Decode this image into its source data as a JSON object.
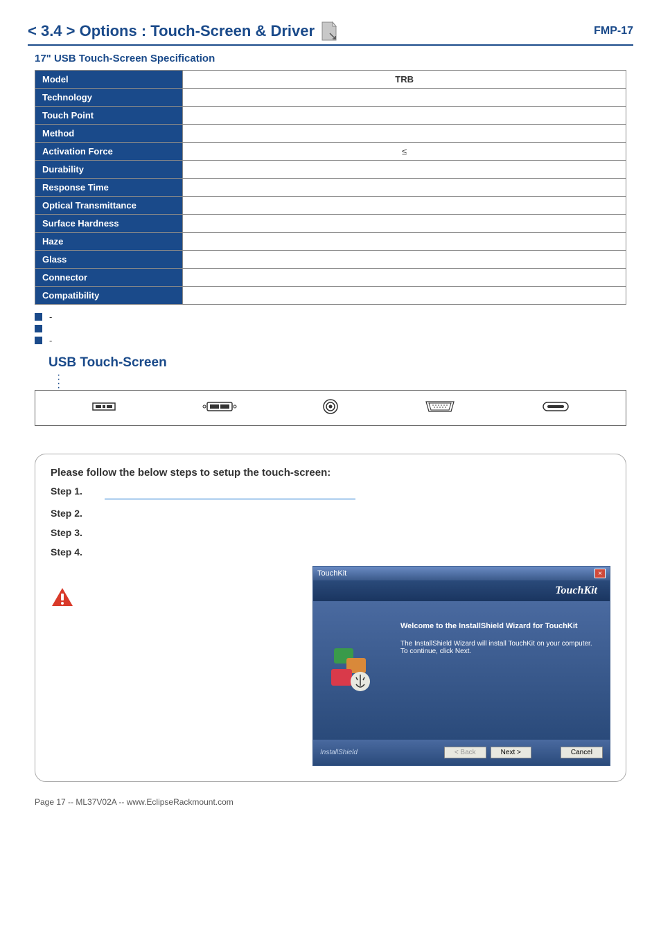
{
  "header": {
    "title": "< 3.4 > Options : Touch-Screen & Driver",
    "product": "FMP-17"
  },
  "subsection_title": "17\" USB Touch-Screen Specification",
  "spec": {
    "header_label": "Model",
    "header_value": "TRB",
    "rows": [
      {
        "label": "Technology",
        "value": ""
      },
      {
        "label": "Touch Point",
        "value": ""
      },
      {
        "label": "Method",
        "value": ""
      },
      {
        "label": "Activation Force",
        "value": "≤"
      },
      {
        "label": "Durability",
        "value": ""
      },
      {
        "label": "Response Time",
        "value": ""
      },
      {
        "label": "Optical Transmittance",
        "value": ""
      },
      {
        "label": "Surface Hardness",
        "value": ""
      },
      {
        "label": "Haze",
        "value": ""
      },
      {
        "label": "Glass",
        "value": ""
      },
      {
        "label": "Connector",
        "value": ""
      },
      {
        "label": "Compatibility",
        "value": ""
      }
    ]
  },
  "bullets": [
    "-",
    "",
    "-"
  ],
  "usb_heading": "USB Touch-Screen",
  "io_items": [
    "",
    "",
    "",
    "",
    ""
  ],
  "setup": {
    "title": "Please follow the below steps to setup the touch-screen:",
    "step1_label": "Step 1.",
    "step1_text": "",
    "step1_link": "",
    "step2_label": "Step 2.",
    "step2_text": "",
    "step3_label": "Step 3.",
    "step3_text": "",
    "step4_label": "Step 4.",
    "step4_text": ""
  },
  "warning_text": "",
  "wizard": {
    "window_title": "TouchKit",
    "brand": "TouchKit",
    "welcome_h": "Welcome to the InstallShield Wizard for TouchKit",
    "welcome_p": "The InstallShield Wizard will install TouchKit on your computer.  To continue, click Next.",
    "footer_brand": "InstallShield",
    "btn_back": "< Back",
    "btn_next": "Next >",
    "btn_cancel": "Cancel"
  },
  "footer": "Page 17 -- ML37V02A -- www.EclipseRackmount.com",
  "colors": {
    "brand": "#1a4a8a",
    "link": "#0066cc",
    "wiz_grad_top": "#4a6aa0",
    "wiz_grad_bot": "#2a4a7a"
  }
}
